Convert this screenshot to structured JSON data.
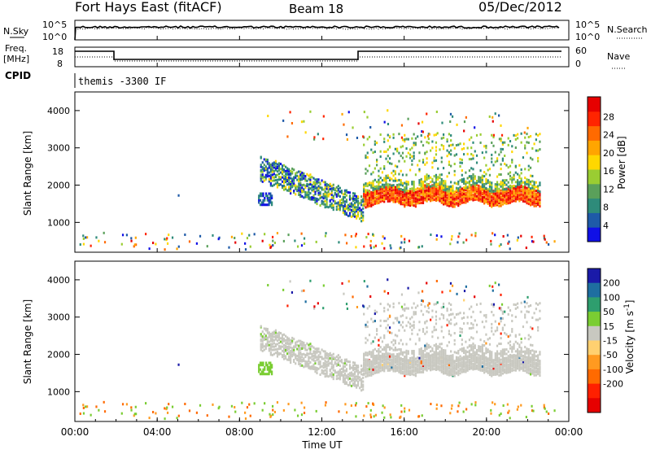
{
  "header": {
    "station": "Fort Hays East (fitACF)",
    "beam": "Beam 18",
    "date": "05/Dec/2012"
  },
  "top_panels": {
    "nsky_label": "N.Sky",
    "nsky_ticks": [
      "10^5",
      "10^0"
    ],
    "nsearch_label": "N.Search",
    "nsearch_ticks": [
      "10^5",
      "10^0"
    ],
    "freq_label_1": "Freq.",
    "freq_label_2": "[MHz]",
    "freq_ticks": [
      "18",
      "8"
    ],
    "nave_label": "Nave",
    "nave_ticks": [
      "60",
      "0"
    ],
    "cpid_label": "CPID",
    "cpid_text": "themis -3300 IF"
  },
  "colors": {
    "power_scale": [
      "#1010e6",
      "#1e5aa8",
      "#2e8b7a",
      "#5aa05a",
      "#9acd32",
      "#ffd700",
      "#ffa500",
      "#ff6a00",
      "#ff2400",
      "#e60000"
    ],
    "velocity_scale": [
      "#1a1aa8",
      "#1e6ea0",
      "#2e9e6e",
      "#7acd32",
      "#c8c8c0",
      "#ffd070",
      "#ff9a20",
      "#ff6a00",
      "#ff2000",
      "#e60000"
    ]
  },
  "chart_data": [
    {
      "type": "heatmap",
      "name": "power",
      "ylabel": "Slant Range [km]",
      "yticks": [
        "1000",
        "2000",
        "3000",
        "4000"
      ],
      "ylim": [
        200,
        4500
      ],
      "xlim_hours": [
        0,
        24
      ],
      "colorbar_label": "Power [dB]",
      "colorbar_ticks": [
        "4",
        "8",
        "12",
        "16",
        "20",
        "24",
        "28"
      ],
      "features": [
        {
          "desc_hours": [
            9.0,
            14.0
          ],
          "range_km": [
            1550,
            2800
          ],
          "level": "mixed"
        },
        {
          "desc_hours": [
            14.0,
            22.5
          ],
          "range_km": [
            1300,
            2000
          ],
          "level": "high"
        },
        {
          "desc_hours": [
            14.0,
            22.5
          ],
          "range_km": [
            2000,
            3300
          ],
          "level": "medium"
        }
      ]
    },
    {
      "type": "heatmap",
      "name": "velocity",
      "ylabel": "Slant Range [km]",
      "yticks": [
        "1000",
        "2000",
        "3000",
        "4000"
      ],
      "ylim": [
        200,
        4500
      ],
      "xlim_hours": [
        0,
        24
      ],
      "colorbar_label": "Velocity [m s^-1]",
      "colorbar_ticks": [
        "200",
        "100",
        "50",
        "15",
        "-15",
        "-50",
        "-100",
        "-200"
      ]
    }
  ],
  "xaxis": {
    "ticks": [
      "00:00",
      "04:00",
      "08:00",
      "12:00",
      "16:00",
      "20:00",
      "00:00"
    ],
    "label": "Time UT"
  }
}
